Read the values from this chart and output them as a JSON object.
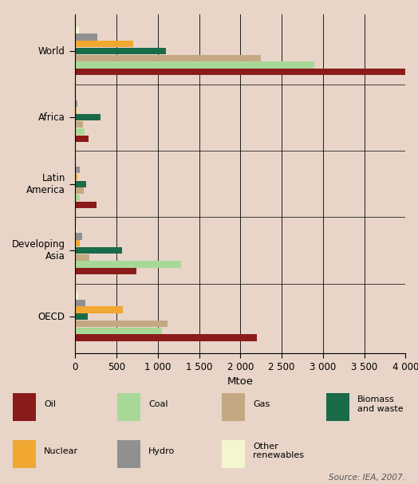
{
  "background_color": "#e8d5c8",
  "legend_background": "#c8a898",
  "xlabel": "Mtoe",
  "regions": [
    "World",
    "Africa",
    "Latin\nAmerica",
    "Developing\nAsia",
    "OECD"
  ],
  "sources": [
    "Oil",
    "Coal",
    "Gas",
    "Biomass and waste",
    "Nuclear",
    "Hydro",
    "Other renewables"
  ],
  "colors": {
    "Oil": "#8b1a1a",
    "Coal": "#a8d898",
    "Gas": "#c4a882",
    "Biomass and waste": "#1a6b4a",
    "Nuclear": "#f0a830",
    "Hydro": "#909090",
    "Other renewables": "#f5f5d0"
  },
  "data": {
    "World": {
      "Oil": 4050,
      "Coal": 2900,
      "Gas": 2250,
      "Biomass and waste": 1100,
      "Nuclear": 700,
      "Hydro": 265,
      "Other renewables": 50
    },
    "Africa": {
      "Oil": 160,
      "Coal": 110,
      "Gas": 90,
      "Biomass and waste": 310,
      "Nuclear": 15,
      "Hydro": 25,
      "Other renewables": 5
    },
    "Latin\nAmerica": {
      "Oil": 260,
      "Coal": 55,
      "Gas": 100,
      "Biomass and waste": 130,
      "Nuclear": 22,
      "Hydro": 55,
      "Other renewables": 8
    },
    "Developing\nAsia": {
      "Oil": 740,
      "Coal": 1280,
      "Gas": 175,
      "Biomass and waste": 570,
      "Nuclear": 58,
      "Hydro": 85,
      "Other renewables": 18
    },
    "OECD": {
      "Oil": 2200,
      "Coal": 1050,
      "Gas": 1120,
      "Biomass and waste": 155,
      "Nuclear": 580,
      "Hydro": 120,
      "Other renewables": 38
    }
  },
  "xlim": [
    0,
    4000
  ],
  "xticks": [
    0,
    500,
    1000,
    1500,
    2000,
    2500,
    3000,
    3500,
    4000
  ],
  "source_text": "Source: IEA, 2007.",
  "legend_labels": [
    "Oil",
    "Coal",
    "Gas",
    "Biomass\nand waste",
    "Nuclear",
    "Hydro",
    "Other\nrenewables"
  ]
}
